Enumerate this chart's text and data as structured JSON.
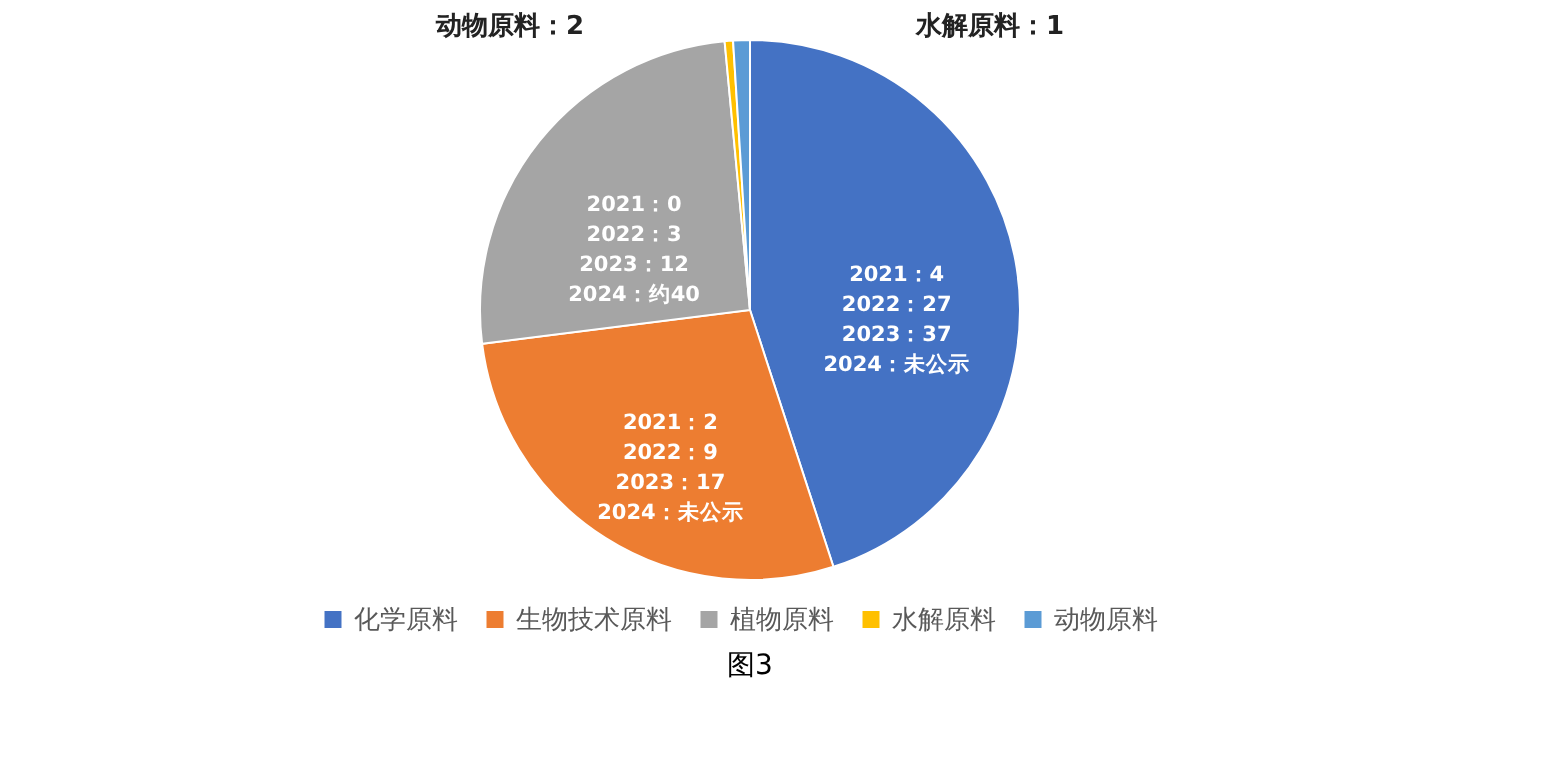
{
  "chart_data": {
    "type": "pie",
    "categories": [
      "化学原料",
      "生物技术原料",
      "植物原料",
      "水解原料",
      "动物原料"
    ],
    "values": [
      45,
      28,
      25.5,
      0.5,
      1
    ],
    "colors": [
      "#4472c4",
      "#ed7d31",
      "#a5a5a5",
      "#ffc000",
      "#5b9bd5"
    ],
    "legend": "bottom",
    "annotations": [
      "2021：4\n2022：27\n2023：37\n2024：未公示",
      "2021：2\n2022：9\n2023：17\n2024：未公示",
      "2021：0\n2022：3\n2023：12\n2024：约40",
      "水解原料：1",
      "动物原料：2",
      "图3"
    ]
  }
}
